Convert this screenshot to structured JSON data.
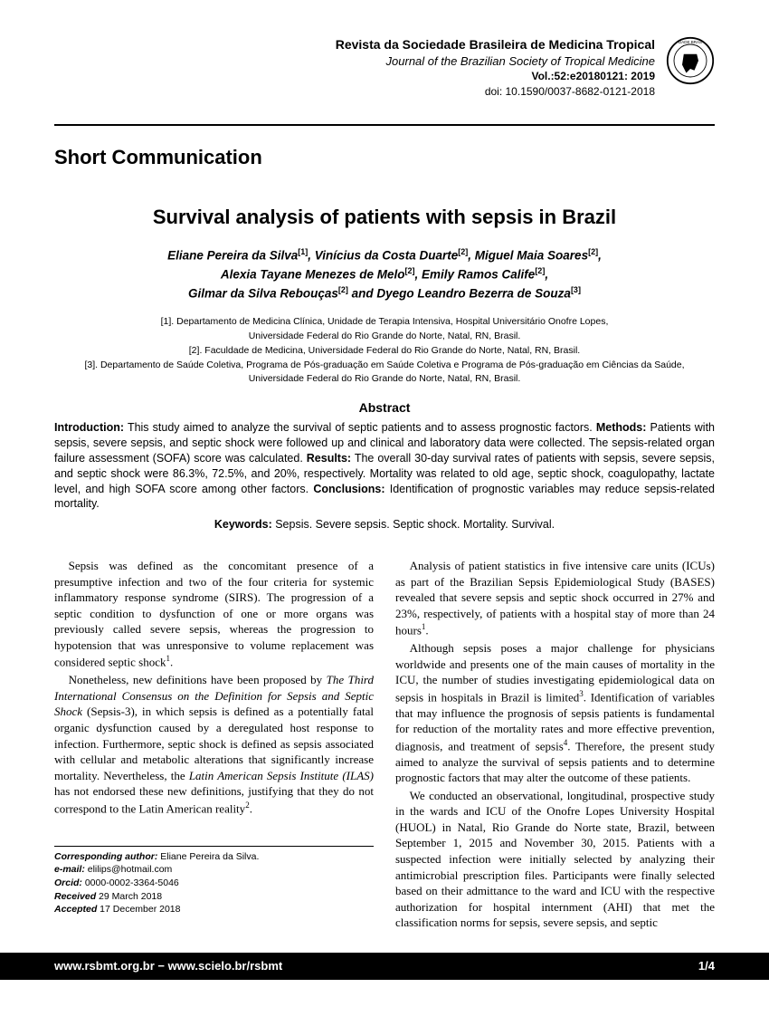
{
  "header": {
    "journal_pt": "Revista da Sociedade Brasileira de Medicina Tropical",
    "journal_en": "Journal of the Brazilian Society of Tropical Medicine",
    "volume": "Vol.:52:e20180121: 2019",
    "doi": "doi: 10.1590/0037-8682-0121-2018"
  },
  "section_label": "Short Communication",
  "title": "Survival analysis of patients with sepsis in Brazil",
  "authors_html": "Eliane Pereira da Silva<sup>[1]</sup>, Vinícius da Costa Duarte<sup>[2]</sup>, Miguel Maia Soares<sup>[2]</sup>,<br>Alexia Tayane Menezes de Melo<sup>[2]</sup>, Emily Ramos Calife<sup>[2]</sup>,<br>Gilmar da Silva Rebouças<sup>[2]</sup> and Dyego Leandro Bezerra de Souza<sup>[3]</sup>",
  "affiliations_html": "[1]. Departamento de Medicina Clínica, Unidade de Terapia Intensiva, Hospital Universitário Onofre Lopes,<br>Universidade Federal do Rio Grande do Norte, Natal, RN, Brasil.<br>[2]. Faculdade de Medicina, Universidade Federal do Rio Grande do Norte, Natal, RN, Brasil.<br>[3]. Departamento de Saúde Coletiva, Programa de Pós-graduação em Saúde Coletiva e Programa de Pós-graduação em Ciências da Saúde,<br>Universidade Federal do Rio Grande do Norte, Natal, RN, Brasil.",
  "abstract": {
    "heading": "Abstract",
    "body_html": "<b>Introduction:</b> This study aimed to analyze the survival of septic patients and to assess prognostic factors. <b>Methods:</b> Patients with sepsis, severe sepsis, and septic shock were followed up  and clinical and laboratory data were collected. The sepsis-related organ failure assessment (SOFA) score was calculated. <b>Results:</b> The overall 30-day survival rates of patients with sepsis, severe sepsis, and septic shock were 86.3%, 72.5%, and 20%, respectively. Mortality was related to old age, septic shock, coagulopathy, lactate level, and high SOFA score among other factors. <b>Conclusions:</b> Identification of prognostic variables may reduce sepsis-related mortality.",
    "keywords_label": "Keywords:",
    "keywords_text": " Sepsis. Severe sepsis. Septic shock. Mortality. Survival."
  },
  "body_paragraphs": [
    "Sepsis was defined as the concomitant presence of a presumptive infection and two of the four criteria for systemic inflammatory response syndrome (SIRS). The progression of a septic condition to dysfunction of one or more organs was previously called severe sepsis, whereas the progression to hypotension that was unresponsive to volume replacement was considered septic shock<sup>1</sup>.",
    "Nonetheless, new definitions have been proposed by <i>The Third International Consensus on the Definition for Sepsis and Septic Shock</i> (Sepsis-3), in which sepsis is defined as a potentially fatal organic dysfunction caused by a deregulated host response to infection. Furthermore, septic shock is defined as sepsis associated with cellular and metabolic alterations that significantly increase mortality. Nevertheless, the <i>Latin American Sepsis Institute (ILAS)</i> has not endorsed these new definitions, justifying that they do not correspond to the Latin American reality<sup>2</sup>.",
    "Analysis of patient statistics in five intensive care units (ICUs) as part of the Brazilian Sepsis Epidemiological Study (BASES) revealed that severe sepsis and septic shock occurred in 27% and 23%, respectively, of patients with a hospital stay of more than 24 hours<sup>1</sup>.",
    "Although sepsis poses a major challenge for physicians worldwide and presents one of the main causes of mortality in the ICU, the  number of studies investigating epidemiological data on sepsis in hospitals in Brazil is limited<sup>3</sup>. Identification of variables that may influence the prognosis of sepsis patients is fundamental for reduction of the mortality rates and more effective prevention, diagnosis, and treatment of sepsis<sup>4</sup>. Therefore, the present study aimed to analyze the survival of sepsis patients and to determine prognostic factors that may alter the outcome of these patients.",
    "We conducted an observational, longitudinal, prospective study in the wards and ICU of the Onofre Lopes University Hospital (HUOL) in Natal, Rio Grande do Norte state, Brazil, between September 1, 2015 and November 30, 2015. Patients with a suspected infection were initially selected by analyzing their antimicrobial prescription files. Participants were finally selected based on their admittance to the ward and ICU with the respective authorization for hospital internment (AHI) that met the classification norms for sepsis, severe sepsis, and septic"
  ],
  "corresponding": {
    "author_label": "Corresponding author:",
    "author_name": " Eliane Pereira da Silva.",
    "email_label": "e-mail:",
    "email_value": " elilips@hotmail.com",
    "orcid_label": "Orcid:",
    "orcid_value": " 0000-0002-3364-5046",
    "received_label": "Received",
    "received_value": " 29 March 2018",
    "accepted_label": "Accepted",
    "accepted_value": " 17 December 2018"
  },
  "footer": {
    "left": "www.rsbmt.org.br − www.scielo.br/rsbmt",
    "right": "1/4"
  }
}
